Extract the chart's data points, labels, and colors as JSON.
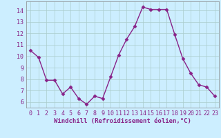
{
  "x": [
    0,
    1,
    2,
    3,
    4,
    5,
    6,
    7,
    8,
    9,
    10,
    11,
    12,
    13,
    14,
    15,
    16,
    17,
    18,
    19,
    20,
    21,
    22,
    23
  ],
  "y": [
    10.5,
    9.9,
    7.9,
    7.9,
    6.7,
    7.3,
    6.3,
    5.8,
    6.5,
    6.3,
    8.2,
    10.1,
    11.5,
    12.6,
    14.3,
    14.1,
    14.1,
    14.1,
    11.9,
    9.8,
    8.5,
    7.5,
    7.3,
    6.5
  ],
  "line_color": "#882288",
  "marker": "D",
  "marker_size": 2.5,
  "bg_color": "#cceeff",
  "grid_color": "#aacccc",
  "xlabel": "Windchill (Refroidissement éolien,°C)",
  "ylabel": "",
  "xlim": [
    -0.5,
    23.5
  ],
  "ylim": [
    5.5,
    14.8
  ],
  "yticks": [
    6,
    7,
    8,
    9,
    10,
    11,
    12,
    13,
    14
  ],
  "xticks": [
    0,
    1,
    2,
    3,
    4,
    5,
    6,
    7,
    8,
    9,
    10,
    11,
    12,
    13,
    14,
    15,
    16,
    17,
    18,
    19,
    20,
    21,
    22,
    23
  ],
  "xlabel_fontsize": 6.5,
  "tick_fontsize": 6,
  "line_width": 1.0,
  "spine_color": "#888888"
}
